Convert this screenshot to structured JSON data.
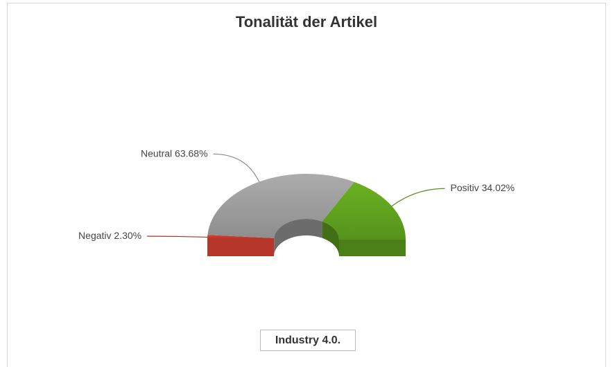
{
  "chart_data": {
    "type": "pie",
    "title": "Tonalität der Artikel",
    "categories": [
      "Negativ",
      "Neutral",
      "Positiv"
    ],
    "values": [
      2.3,
      63.68,
      34.02
    ],
    "value_labels": [
      "2.30%",
      "63.68%",
      "34.02%"
    ],
    "colors": [
      "#c0392b",
      "#9a9a9a",
      "#5e9f1e"
    ],
    "footer": "Industry 4.0."
  }
}
